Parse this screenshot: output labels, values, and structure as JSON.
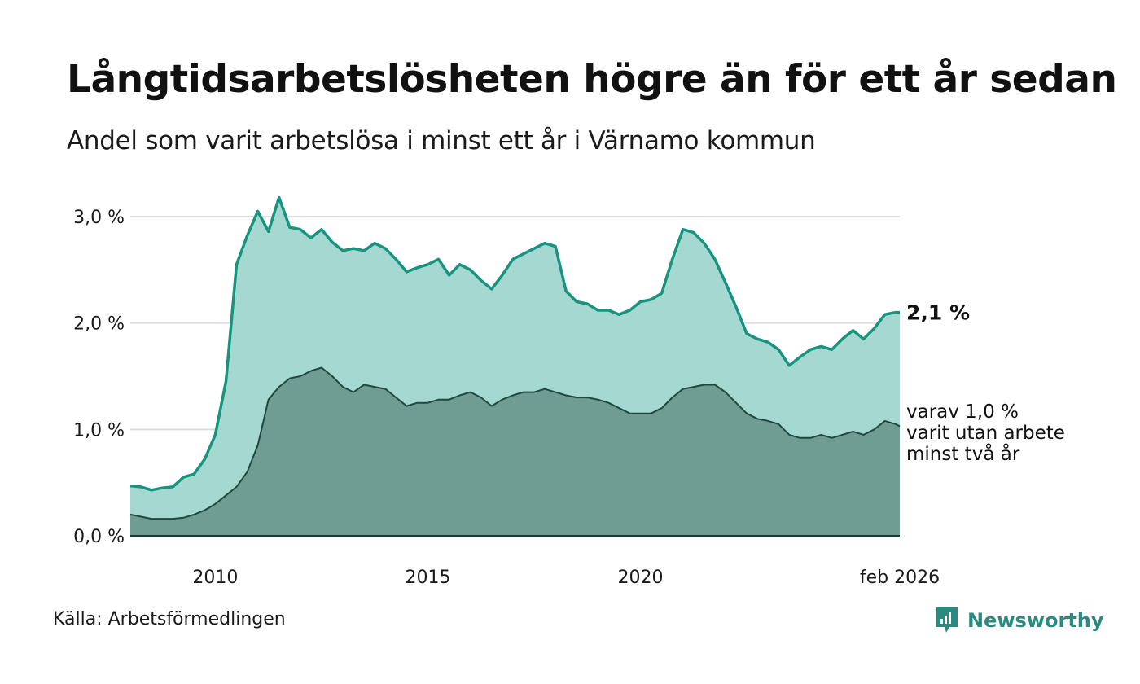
{
  "header": {
    "title": "Långtidsarbetslösheten högre än för ett år sedan",
    "subtitle": "Andel som varit arbetslösa i minst ett år i Värnamo kommun"
  },
  "footer": {
    "source": "Källa: Arbetsförmedlingen",
    "brand": "Newsworthy",
    "brand_icon": "newsworthy-logo-icon"
  },
  "colors": {
    "upper_line": "#17947f",
    "upper_fill": "#a5d8d0",
    "lower_line": "#1f4840",
    "lower_fill": "#6f9d94",
    "grid": "#dddddd",
    "brand": "#2a8a7f"
  },
  "chart_data": {
    "type": "area",
    "title": "Långtidsarbetslösheten högre än för ett år sedan",
    "subtitle": "Andel som varit arbetslösa i minst ett år i Värnamo kommun",
    "xlabel": "",
    "ylabel": "",
    "unit": "%",
    "xlim": [
      2008.0,
      2026.1
    ],
    "ylim": [
      0,
      3.0
    ],
    "y_ticks": [
      0,
      1,
      2,
      3
    ],
    "y_tick_labels": [
      "0,0 %",
      "1,0 %",
      "2,0 %",
      "3,0 %"
    ],
    "x_ticks": [
      2010,
      2015,
      2020,
      2026.1
    ],
    "x_tick_labels": [
      "2010",
      "2015",
      "2020",
      "feb 2026"
    ],
    "grid": true,
    "x": [
      2008.0,
      2008.25,
      2008.5,
      2008.75,
      2009.0,
      2009.25,
      2009.5,
      2009.75,
      2010.0,
      2010.25,
      2010.5,
      2010.75,
      2011.0,
      2011.25,
      2011.5,
      2011.75,
      2012.0,
      2012.25,
      2012.5,
      2012.75,
      2013.0,
      2013.25,
      2013.5,
      2013.75,
      2014.0,
      2014.25,
      2014.5,
      2014.75,
      2015.0,
      2015.25,
      2015.5,
      2015.75,
      2016.0,
      2016.25,
      2016.5,
      2016.75,
      2017.0,
      2017.25,
      2017.5,
      2017.75,
      2018.0,
      2018.25,
      2018.5,
      2018.75,
      2019.0,
      2019.25,
      2019.5,
      2019.75,
      2020.0,
      2020.25,
      2020.5,
      2020.75,
      2021.0,
      2021.25,
      2021.5,
      2021.75,
      2022.0,
      2022.25,
      2022.5,
      2022.75,
      2023.0,
      2023.25,
      2023.5,
      2023.75,
      2024.0,
      2024.25,
      2024.5,
      2024.75,
      2025.0,
      2025.25,
      2025.5,
      2025.75,
      2026.0,
      2026.1
    ],
    "series": [
      {
        "name": "Minst ett år",
        "end_label": "2,1 %",
        "values": [
          0.47,
          0.46,
          0.43,
          0.45,
          0.46,
          0.55,
          0.58,
          0.72,
          0.95,
          1.45,
          2.55,
          2.82,
          3.05,
          2.86,
          3.18,
          2.9,
          2.88,
          2.8,
          2.88,
          2.76,
          2.68,
          2.7,
          2.68,
          2.75,
          2.7,
          2.6,
          2.48,
          2.52,
          2.55,
          2.6,
          2.45,
          2.55,
          2.5,
          2.4,
          2.32,
          2.45,
          2.6,
          2.65,
          2.7,
          2.75,
          2.72,
          2.3,
          2.2,
          2.18,
          2.12,
          2.12,
          2.08,
          2.12,
          2.2,
          2.22,
          2.28,
          2.6,
          2.88,
          2.85,
          2.75,
          2.6,
          2.38,
          2.15,
          1.9,
          1.85,
          1.82,
          1.75,
          1.6,
          1.68,
          1.75,
          1.78,
          1.75,
          1.85,
          1.93,
          1.85,
          1.95,
          2.08,
          2.1,
          2.1
        ]
      },
      {
        "name": "varav minst två år",
        "end_label": "varav 1,0 %\nvarit utan arbete\nminst två år",
        "values": [
          0.2,
          0.18,
          0.16,
          0.16,
          0.16,
          0.17,
          0.2,
          0.24,
          0.3,
          0.38,
          0.46,
          0.6,
          0.85,
          1.28,
          1.4,
          1.48,
          1.5,
          1.55,
          1.58,
          1.5,
          1.4,
          1.35,
          1.42,
          1.4,
          1.38,
          1.3,
          1.22,
          1.25,
          1.25,
          1.28,
          1.28,
          1.32,
          1.35,
          1.3,
          1.22,
          1.28,
          1.32,
          1.35,
          1.35,
          1.38,
          1.35,
          1.32,
          1.3,
          1.3,
          1.28,
          1.25,
          1.2,
          1.15,
          1.15,
          1.15,
          1.2,
          1.3,
          1.38,
          1.4,
          1.42,
          1.42,
          1.35,
          1.25,
          1.15,
          1.1,
          1.08,
          1.05,
          0.95,
          0.92,
          0.92,
          0.95,
          0.92,
          0.95,
          0.98,
          0.95,
          1.0,
          1.08,
          1.05,
          1.03
        ]
      }
    ]
  }
}
